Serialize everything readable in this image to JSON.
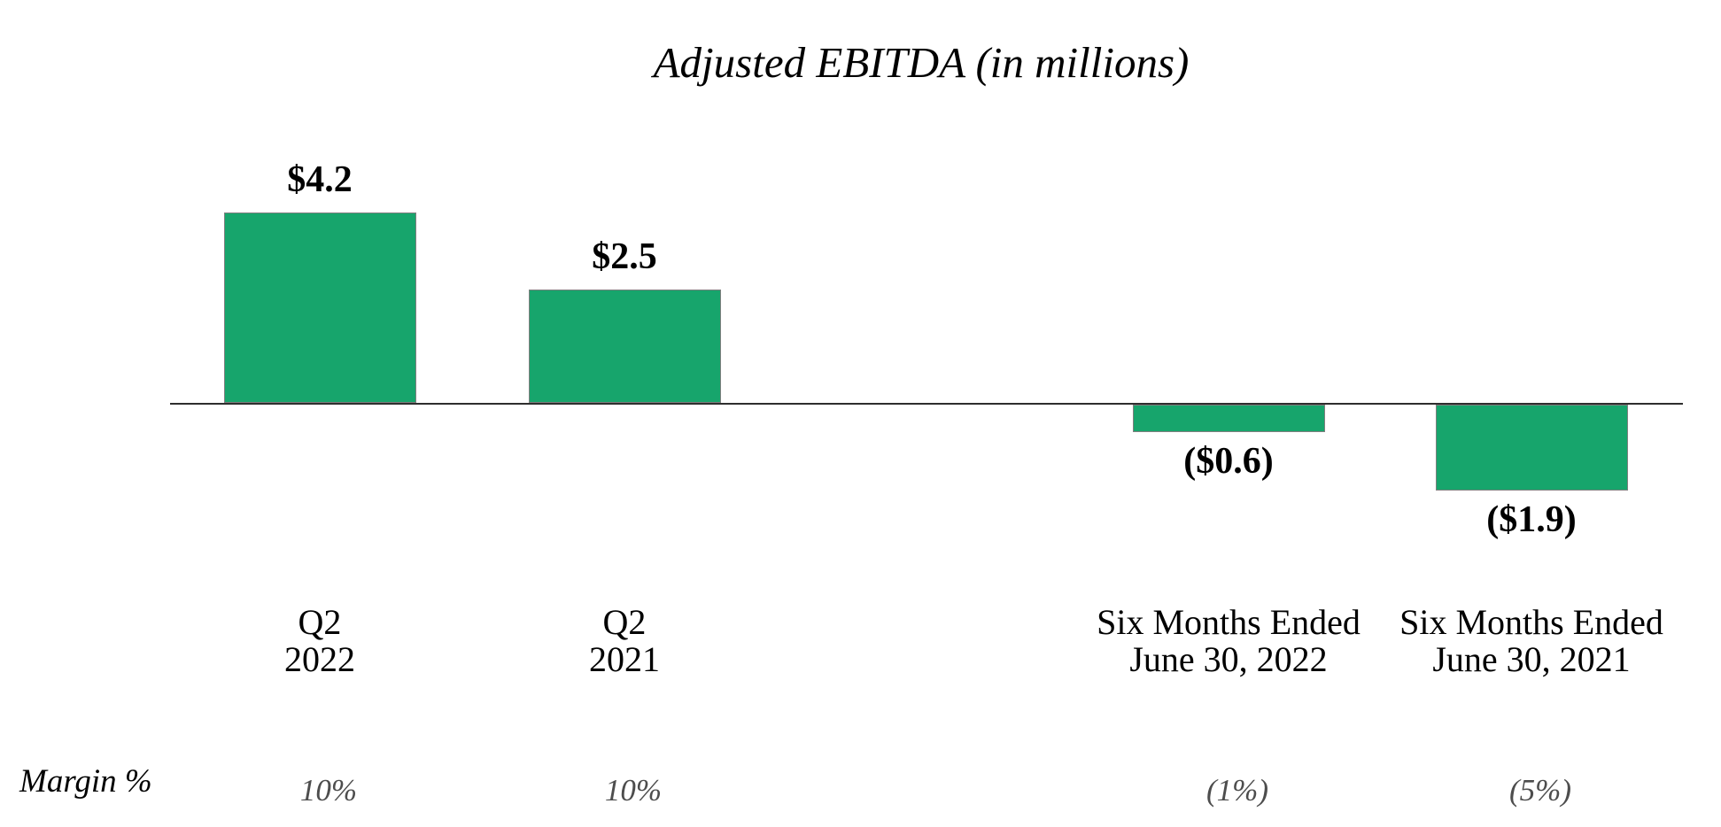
{
  "chart_data": {
    "type": "bar",
    "title": "Adjusted EBITDA (in millions)",
    "unit": "USD millions",
    "categories": [
      {
        "line1": "Q2",
        "line2": "2022"
      },
      {
        "line1": "Q2",
        "line2": "2021"
      },
      {
        "line1": "Six Months Ended",
        "line2": "June 30, 2022"
      },
      {
        "line1": "Six Months Ended",
        "line2": "June 30, 2021"
      }
    ],
    "values": [
      4.2,
      2.5,
      -0.6,
      -1.9
    ],
    "value_labels": [
      "$4.2",
      "$2.5",
      "($0.6)",
      "($1.9)"
    ],
    "margin_row": {
      "label": "Margin %",
      "values": [
        "10%",
        "10%",
        "(1%)",
        "(5%)"
      ]
    },
    "xlabel": "",
    "ylabel": "",
    "ylim": [
      -2.5,
      4.5
    ],
    "baseline": 0,
    "gridlines": false,
    "legend": false,
    "colors": {
      "bar_fill": "#17a56c",
      "bar_border": "#7f7f7f",
      "axis": "#2e2e2e",
      "value_text": "#000000",
      "category_text": "#000000",
      "margin_text": "#4d4d4d",
      "title_text": "#000000"
    }
  }
}
